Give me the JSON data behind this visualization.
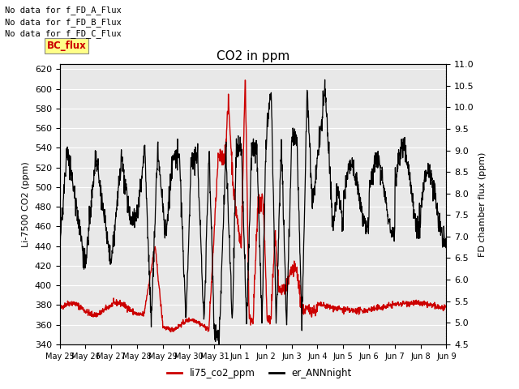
{
  "title": "CO2 in ppm",
  "ylabel_left": "Li-7500 CO2 (ppm)",
  "ylabel_right": "FD chamber flux (ppm)",
  "ylim_left": [
    340,
    625
  ],
  "ylim_right": [
    4.5,
    11.0
  ],
  "yticks_left": [
    340,
    360,
    380,
    400,
    420,
    440,
    460,
    480,
    500,
    520,
    540,
    560,
    580,
    600,
    620
  ],
  "yticks_right": [
    4.5,
    5.0,
    5.5,
    6.0,
    6.5,
    7.0,
    7.5,
    8.0,
    8.5,
    9.0,
    9.5,
    10.0,
    10.5,
    11.0
  ],
  "xtick_labels": [
    "May 25",
    "May 26",
    "May 27",
    "May 28",
    "May 29",
    "May 30",
    "May 31",
    "Jun 1",
    "Jun 2",
    "Jun 3",
    "Jun 4",
    "Jun 5",
    "Jun 6",
    "Jun 7",
    "Jun 8",
    "Jun 9"
  ],
  "annotations": [
    "No data for f_FD_A_Flux",
    "No data for f_FD_B_Flux",
    "No data for f_FD_C_Flux"
  ],
  "legend_label_box": "BC_flux",
  "legend_label1": "li75_co2_ppm",
  "legend_label2": "er_ANNnight",
  "color_red": "#cc0000",
  "color_black": "#000000",
  "bg_color": "#e8e8e8",
  "title_fontsize": 11,
  "axis_fontsize": 8,
  "tick_fontsize": 8,
  "ann_fontsize": 7.5
}
